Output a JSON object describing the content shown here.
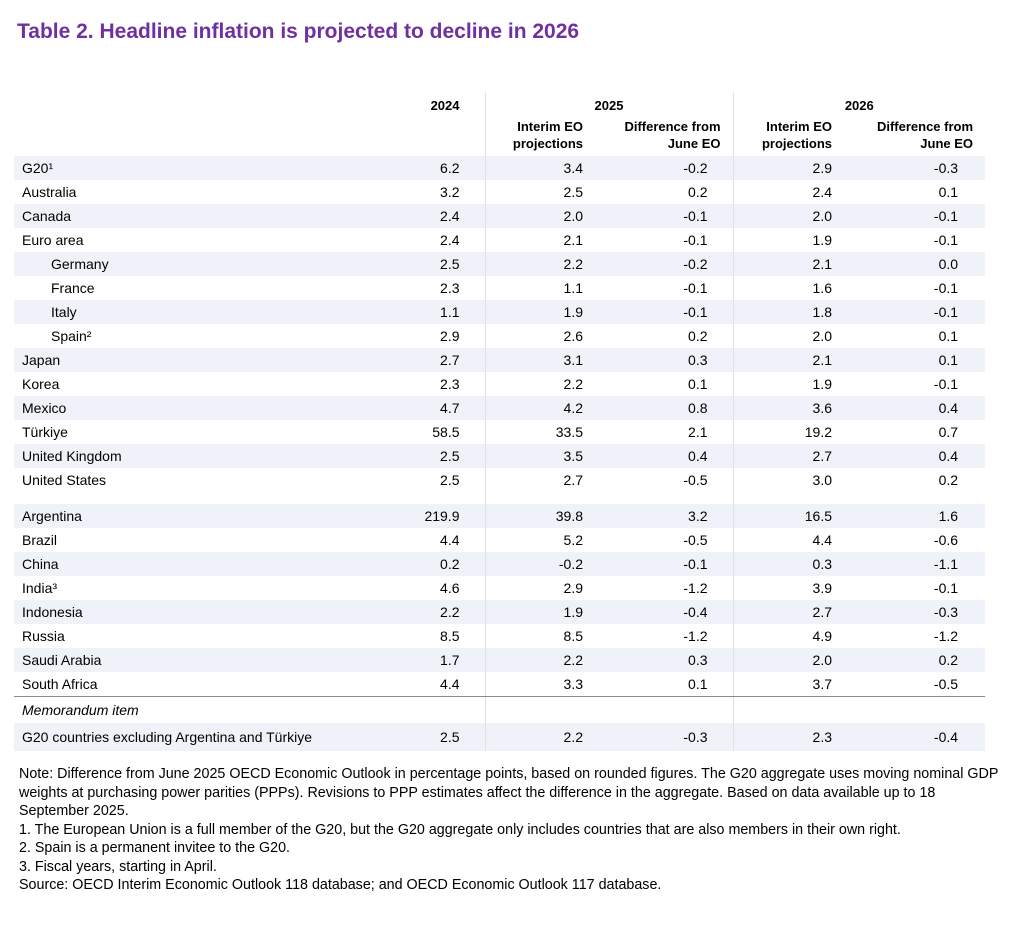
{
  "title": "Table 2. Headline inflation is projected to decline in 2026",
  "header": {
    "years": [
      "2024",
      "2025",
      "2026"
    ],
    "sub_interim": "Interim EO projections",
    "sub_diff": "Difference from June EO"
  },
  "groups": [
    [
      {
        "label": "G20¹",
        "v": [
          "6.2",
          "3.4",
          "-0.2",
          "2.9",
          "-0.3"
        ]
      },
      {
        "label": "Australia",
        "v": [
          "3.2",
          "2.5",
          "0.2",
          "2.4",
          "0.1"
        ]
      },
      {
        "label": "Canada",
        "v": [
          "2.4",
          "2.0",
          "-0.1",
          "2.0",
          "-0.1"
        ]
      },
      {
        "label": "Euro area",
        "v": [
          "2.4",
          "2.1",
          "-0.1",
          "1.9",
          "-0.1"
        ]
      },
      {
        "label": "Germany",
        "indent": true,
        "v": [
          "2.5",
          "2.2",
          "-0.2",
          "2.1",
          "0.0"
        ]
      },
      {
        "label": "France",
        "indent": true,
        "v": [
          "2.3",
          "1.1",
          "-0.1",
          "1.6",
          "-0.1"
        ]
      },
      {
        "label": "Italy",
        "indent": true,
        "v": [
          "1.1",
          "1.9",
          "-0.1",
          "1.8",
          "-0.1"
        ]
      },
      {
        "label": "Spain²",
        "indent": true,
        "v": [
          "2.9",
          "2.6",
          "0.2",
          "2.0",
          "0.1"
        ]
      },
      {
        "label": "Japan",
        "v": [
          "2.7",
          "3.1",
          "0.3",
          "2.1",
          "0.1"
        ]
      },
      {
        "label": "Korea",
        "v": [
          "2.3",
          "2.2",
          "0.1",
          "1.9",
          "-0.1"
        ]
      },
      {
        "label": "Mexico",
        "v": [
          "4.7",
          "4.2",
          "0.8",
          "3.6",
          "0.4"
        ]
      },
      {
        "label": "Türkiye",
        "v": [
          "58.5",
          "33.5",
          "2.1",
          "19.2",
          "0.7"
        ]
      },
      {
        "label": "United Kingdom",
        "v": [
          "2.5",
          "3.5",
          "0.4",
          "2.7",
          "0.4"
        ]
      },
      {
        "label": "United States",
        "v": [
          "2.5",
          "2.7",
          "-0.5",
          "3.0",
          "0.2"
        ]
      }
    ],
    [
      {
        "label": "Argentina",
        "v": [
          "219.9",
          "39.8",
          "3.2",
          "16.5",
          "1.6"
        ]
      },
      {
        "label": "Brazil",
        "v": [
          "4.4",
          "5.2",
          "-0.5",
          "4.4",
          "-0.6"
        ]
      },
      {
        "label": "China",
        "v": [
          "0.2",
          "-0.2",
          "-0.1",
          "0.3",
          "-1.1"
        ]
      },
      {
        "label": "India³",
        "v": [
          "4.6",
          "2.9",
          "-1.2",
          "3.9",
          "-0.1"
        ]
      },
      {
        "label": "Indonesia",
        "v": [
          "2.2",
          "1.9",
          "-0.4",
          "2.7",
          "-0.3"
        ]
      },
      {
        "label": "Russia",
        "v": [
          "8.5",
          "8.5",
          "-1.2",
          "4.9",
          "-1.2"
        ]
      },
      {
        "label": "Saudi Arabia",
        "v": [
          "1.7",
          "2.2",
          "0.3",
          "2.0",
          "0.2"
        ]
      },
      {
        "label": "South Africa",
        "v": [
          "4.4",
          "3.3",
          "0.1",
          "3.7",
          "-0.5"
        ]
      }
    ]
  ],
  "memo": {
    "label": "Memorandum item",
    "row": {
      "label": "G20 countries excluding Argentina and Türkiye",
      "v": [
        "2.5",
        "2.2",
        "-0.3",
        "2.3",
        "-0.4"
      ]
    }
  },
  "notes": {
    "note": "Note: Difference from June 2025 OECD Economic Outlook in percentage points, based on rounded figures. The G20 aggregate uses moving nominal GDP weights at purchasing power parities (PPPs). Revisions to PPP estimates affect the difference in the aggregate. Based on data available up to 18 September 2025.",
    "footnotes": [
      "1.   The European Union is a full member of the G20, but the G20 aggregate only includes countries that are also members in their own right.",
      "2.   Spain is a permanent invitee to the G20.",
      "3.   Fiscal years, starting in April."
    ],
    "source": "Source: OECD Interim Economic Outlook 118 database; and OECD Economic Outlook 117 database."
  },
  "colors": {
    "title": "#7030a0",
    "stripe": "#f0f2f9"
  }
}
